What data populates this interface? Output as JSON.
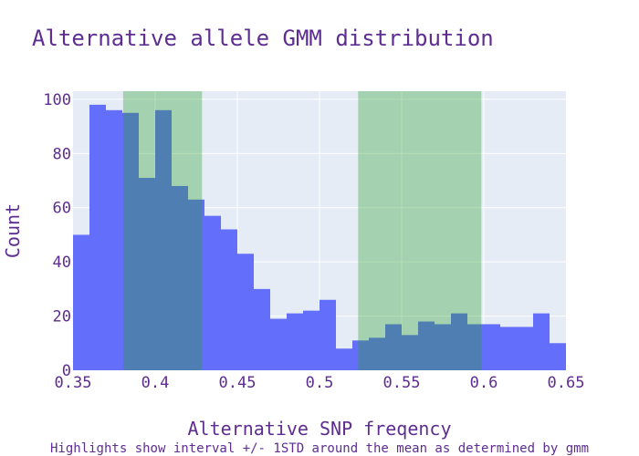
{
  "chart_data": {
    "type": "bar",
    "title": "Alternative allele GMM distribution",
    "xlabel": "Alternative SNP freqency",
    "ylabel": "Count",
    "caption": "Highlights show interval +/- 1STD around the mean as determined by gmm",
    "xlim": [
      0.35,
      0.65
    ],
    "ylim": [
      0,
      103
    ],
    "bin_width": 0.01,
    "bins": [
      {
        "x0": 0.35,
        "value": 50
      },
      {
        "x0": 0.36,
        "value": 98
      },
      {
        "x0": 0.37,
        "value": 96
      },
      {
        "x0": 0.38,
        "value": 95
      },
      {
        "x0": 0.39,
        "value": 71
      },
      {
        "x0": 0.4,
        "value": 96
      },
      {
        "x0": 0.41,
        "value": 68
      },
      {
        "x0": 0.42,
        "value": 63
      },
      {
        "x0": 0.43,
        "value": 57
      },
      {
        "x0": 0.44,
        "value": 52
      },
      {
        "x0": 0.45,
        "value": 43
      },
      {
        "x0": 0.46,
        "value": 30
      },
      {
        "x0": 0.47,
        "value": 19
      },
      {
        "x0": 0.48,
        "value": 21
      },
      {
        "x0": 0.49,
        "value": 22
      },
      {
        "x0": 0.5,
        "value": 26
      },
      {
        "x0": 0.51,
        "value": 8
      },
      {
        "x0": 0.52,
        "value": 11
      },
      {
        "x0": 0.53,
        "value": 12
      },
      {
        "x0": 0.54,
        "value": 17
      },
      {
        "x0": 0.55,
        "value": 13
      },
      {
        "x0": 0.56,
        "value": 18
      },
      {
        "x0": 0.57,
        "value": 17
      },
      {
        "x0": 0.58,
        "value": 21
      },
      {
        "x0": 0.59,
        "value": 17
      },
      {
        "x0": 0.6,
        "value": 17
      },
      {
        "x0": 0.61,
        "value": 16
      },
      {
        "x0": 0.62,
        "value": 16
      },
      {
        "x0": 0.63,
        "value": 21
      },
      {
        "x0": 0.64,
        "value": 10
      }
    ],
    "highlights": [
      {
        "x0": 0.3805,
        "x1": 0.4285
      },
      {
        "x0": 0.5235,
        "x1": 0.5985
      }
    ],
    "xticks": [
      {
        "value": 0.35,
        "label": "0.35"
      },
      {
        "value": 0.4,
        "label": "0.4"
      },
      {
        "value": 0.45,
        "label": "0.45"
      },
      {
        "value": 0.5,
        "label": "0.5"
      },
      {
        "value": 0.55,
        "label": "0.55"
      },
      {
        "value": 0.6,
        "label": "0.6"
      },
      {
        "value": 0.65,
        "label": "0.65"
      }
    ],
    "yticks": [
      {
        "value": 0,
        "label": "0"
      },
      {
        "value": 20,
        "label": "20"
      },
      {
        "value": 40,
        "label": "40"
      },
      {
        "value": 60,
        "label": "60"
      },
      {
        "value": 80,
        "label": "80"
      },
      {
        "value": 100,
        "label": "100"
      }
    ],
    "grid": true,
    "colors": {
      "text": "#5e2d91",
      "plot_bg": "#e5ecf6",
      "grid": "#ffffff",
      "bar": "#636efa",
      "highlight": "#2ca02c",
      "highlight_opacity": 0.35
    }
  }
}
